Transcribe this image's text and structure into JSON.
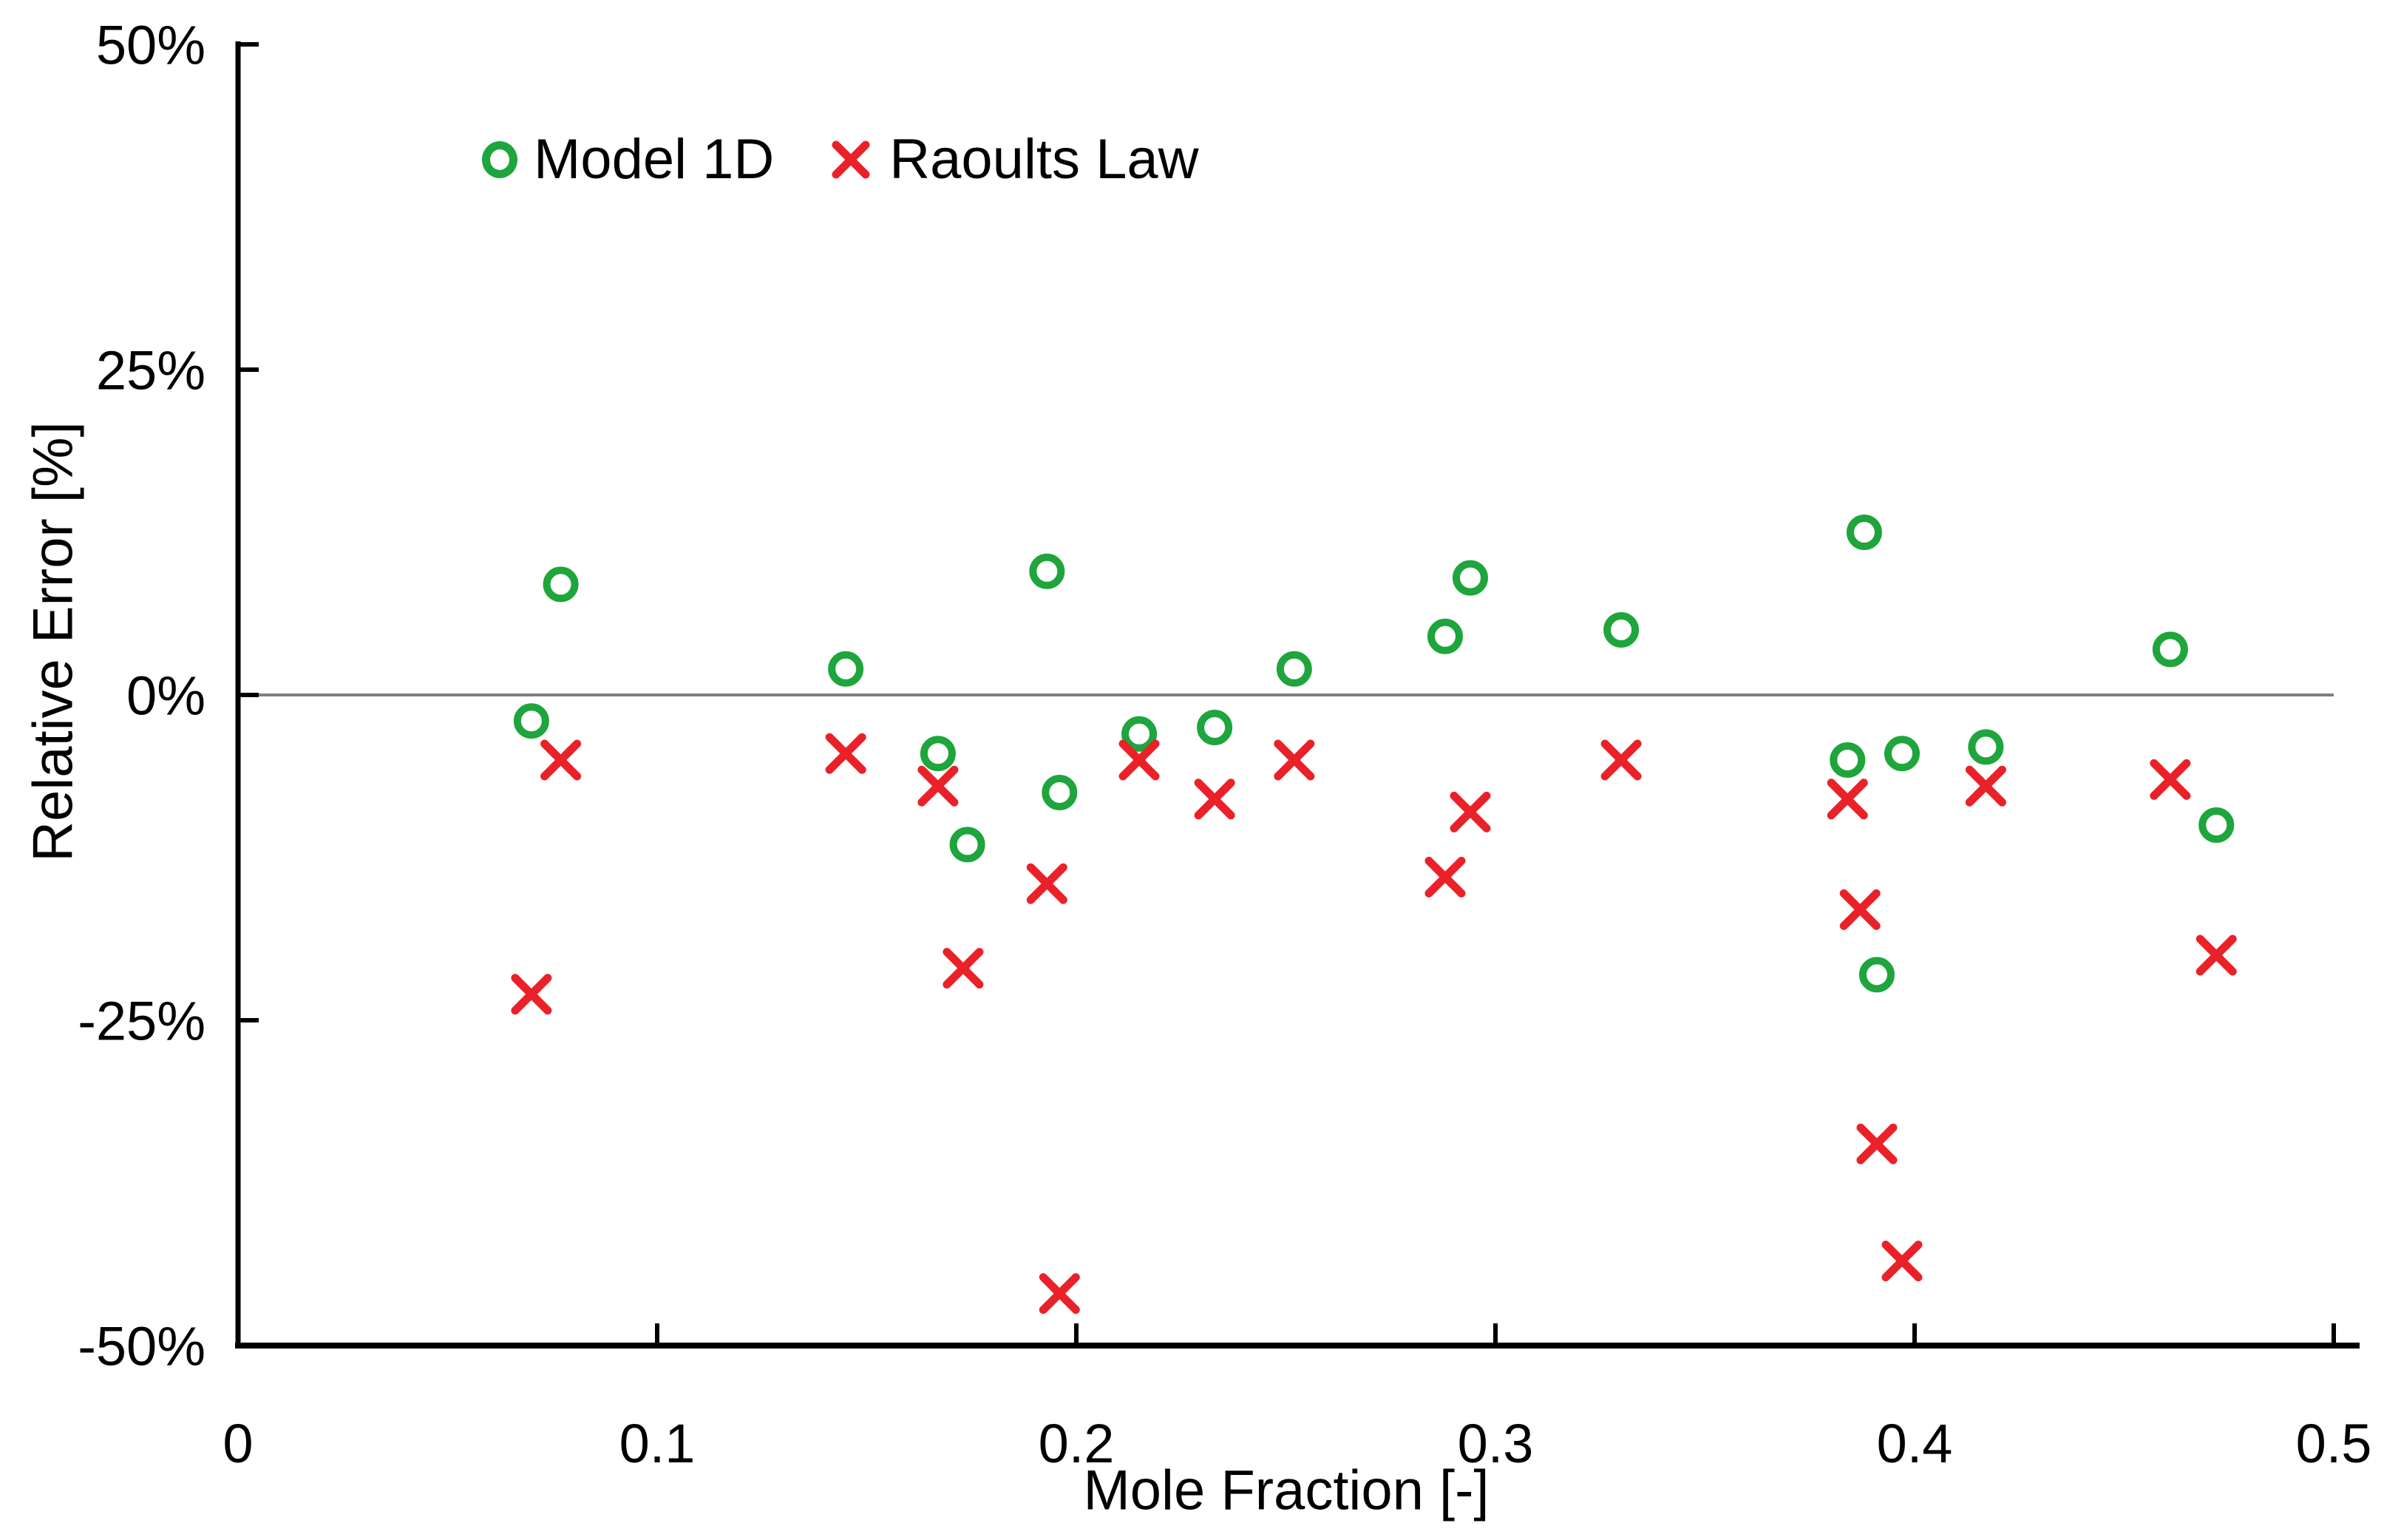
{
  "page": {
    "background": "#ffffff"
  },
  "chart_data": {
    "type": "scatter",
    "title": "",
    "xlabel": "Mole Fraction [-]",
    "ylabel": "Relative Error [%]",
    "xlim": [
      0,
      0.5
    ],
    "ylim": [
      -50,
      50
    ],
    "x_ticks": [
      0,
      0.1,
      0.2,
      0.3,
      0.4,
      0.5
    ],
    "x_tick_labels": [
      "0",
      "0.1",
      "0.2",
      "0.3",
      "0.4",
      "0.5"
    ],
    "y_ticks": [
      50,
      25,
      0,
      -25,
      -50
    ],
    "y_tick_labels": [
      "50%",
      "25%",
      "0%",
      "-25%",
      "-50%"
    ],
    "grid": false,
    "zero_line": true,
    "zero_line_color": "#808080",
    "axis_color": "#000000",
    "text_color": "#000000",
    "legend_position": "inside-top-left",
    "series": [
      {
        "name": "Model 1D",
        "marker": "circle",
        "color": "#1ea53c",
        "points": [
          [
            0.07,
            -2
          ],
          [
            0.077,
            8.5
          ],
          [
            0.145,
            2
          ],
          [
            0.167,
            -4.5
          ],
          [
            0.174,
            -11.5
          ],
          [
            0.193,
            9.5
          ],
          [
            0.196,
            -7.5
          ],
          [
            0.215,
            -3
          ],
          [
            0.233,
            -2.5
          ],
          [
            0.252,
            2
          ],
          [
            0.288,
            4.5
          ],
          [
            0.294,
            9
          ],
          [
            0.33,
            5
          ],
          [
            0.384,
            -5
          ],
          [
            0.388,
            12.5
          ],
          [
            0.391,
            -21.5
          ],
          [
            0.397,
            -4.5
          ],
          [
            0.417,
            -4
          ],
          [
            0.461,
            3.5
          ],
          [
            0.472,
            -10
          ]
        ]
      },
      {
        "name": "Raoults Law",
        "marker": "x",
        "color": "#ea2128",
        "points": [
          [
            0.07,
            -23
          ],
          [
            0.077,
            -5
          ],
          [
            0.145,
            -4.5
          ],
          [
            0.167,
            -7
          ],
          [
            0.173,
            -21
          ],
          [
            0.193,
            -14.5
          ],
          [
            0.196,
            -46
          ],
          [
            0.215,
            -5
          ],
          [
            0.233,
            -8
          ],
          [
            0.252,
            -5
          ],
          [
            0.288,
            -14
          ],
          [
            0.294,
            -9
          ],
          [
            0.33,
            -5
          ],
          [
            0.384,
            -8
          ],
          [
            0.387,
            -16.5
          ],
          [
            0.391,
            -34.5
          ],
          [
            0.397,
            -43.5
          ],
          [
            0.417,
            -7
          ],
          [
            0.461,
            -6.5
          ],
          [
            0.472,
            -20
          ]
        ]
      }
    ]
  }
}
